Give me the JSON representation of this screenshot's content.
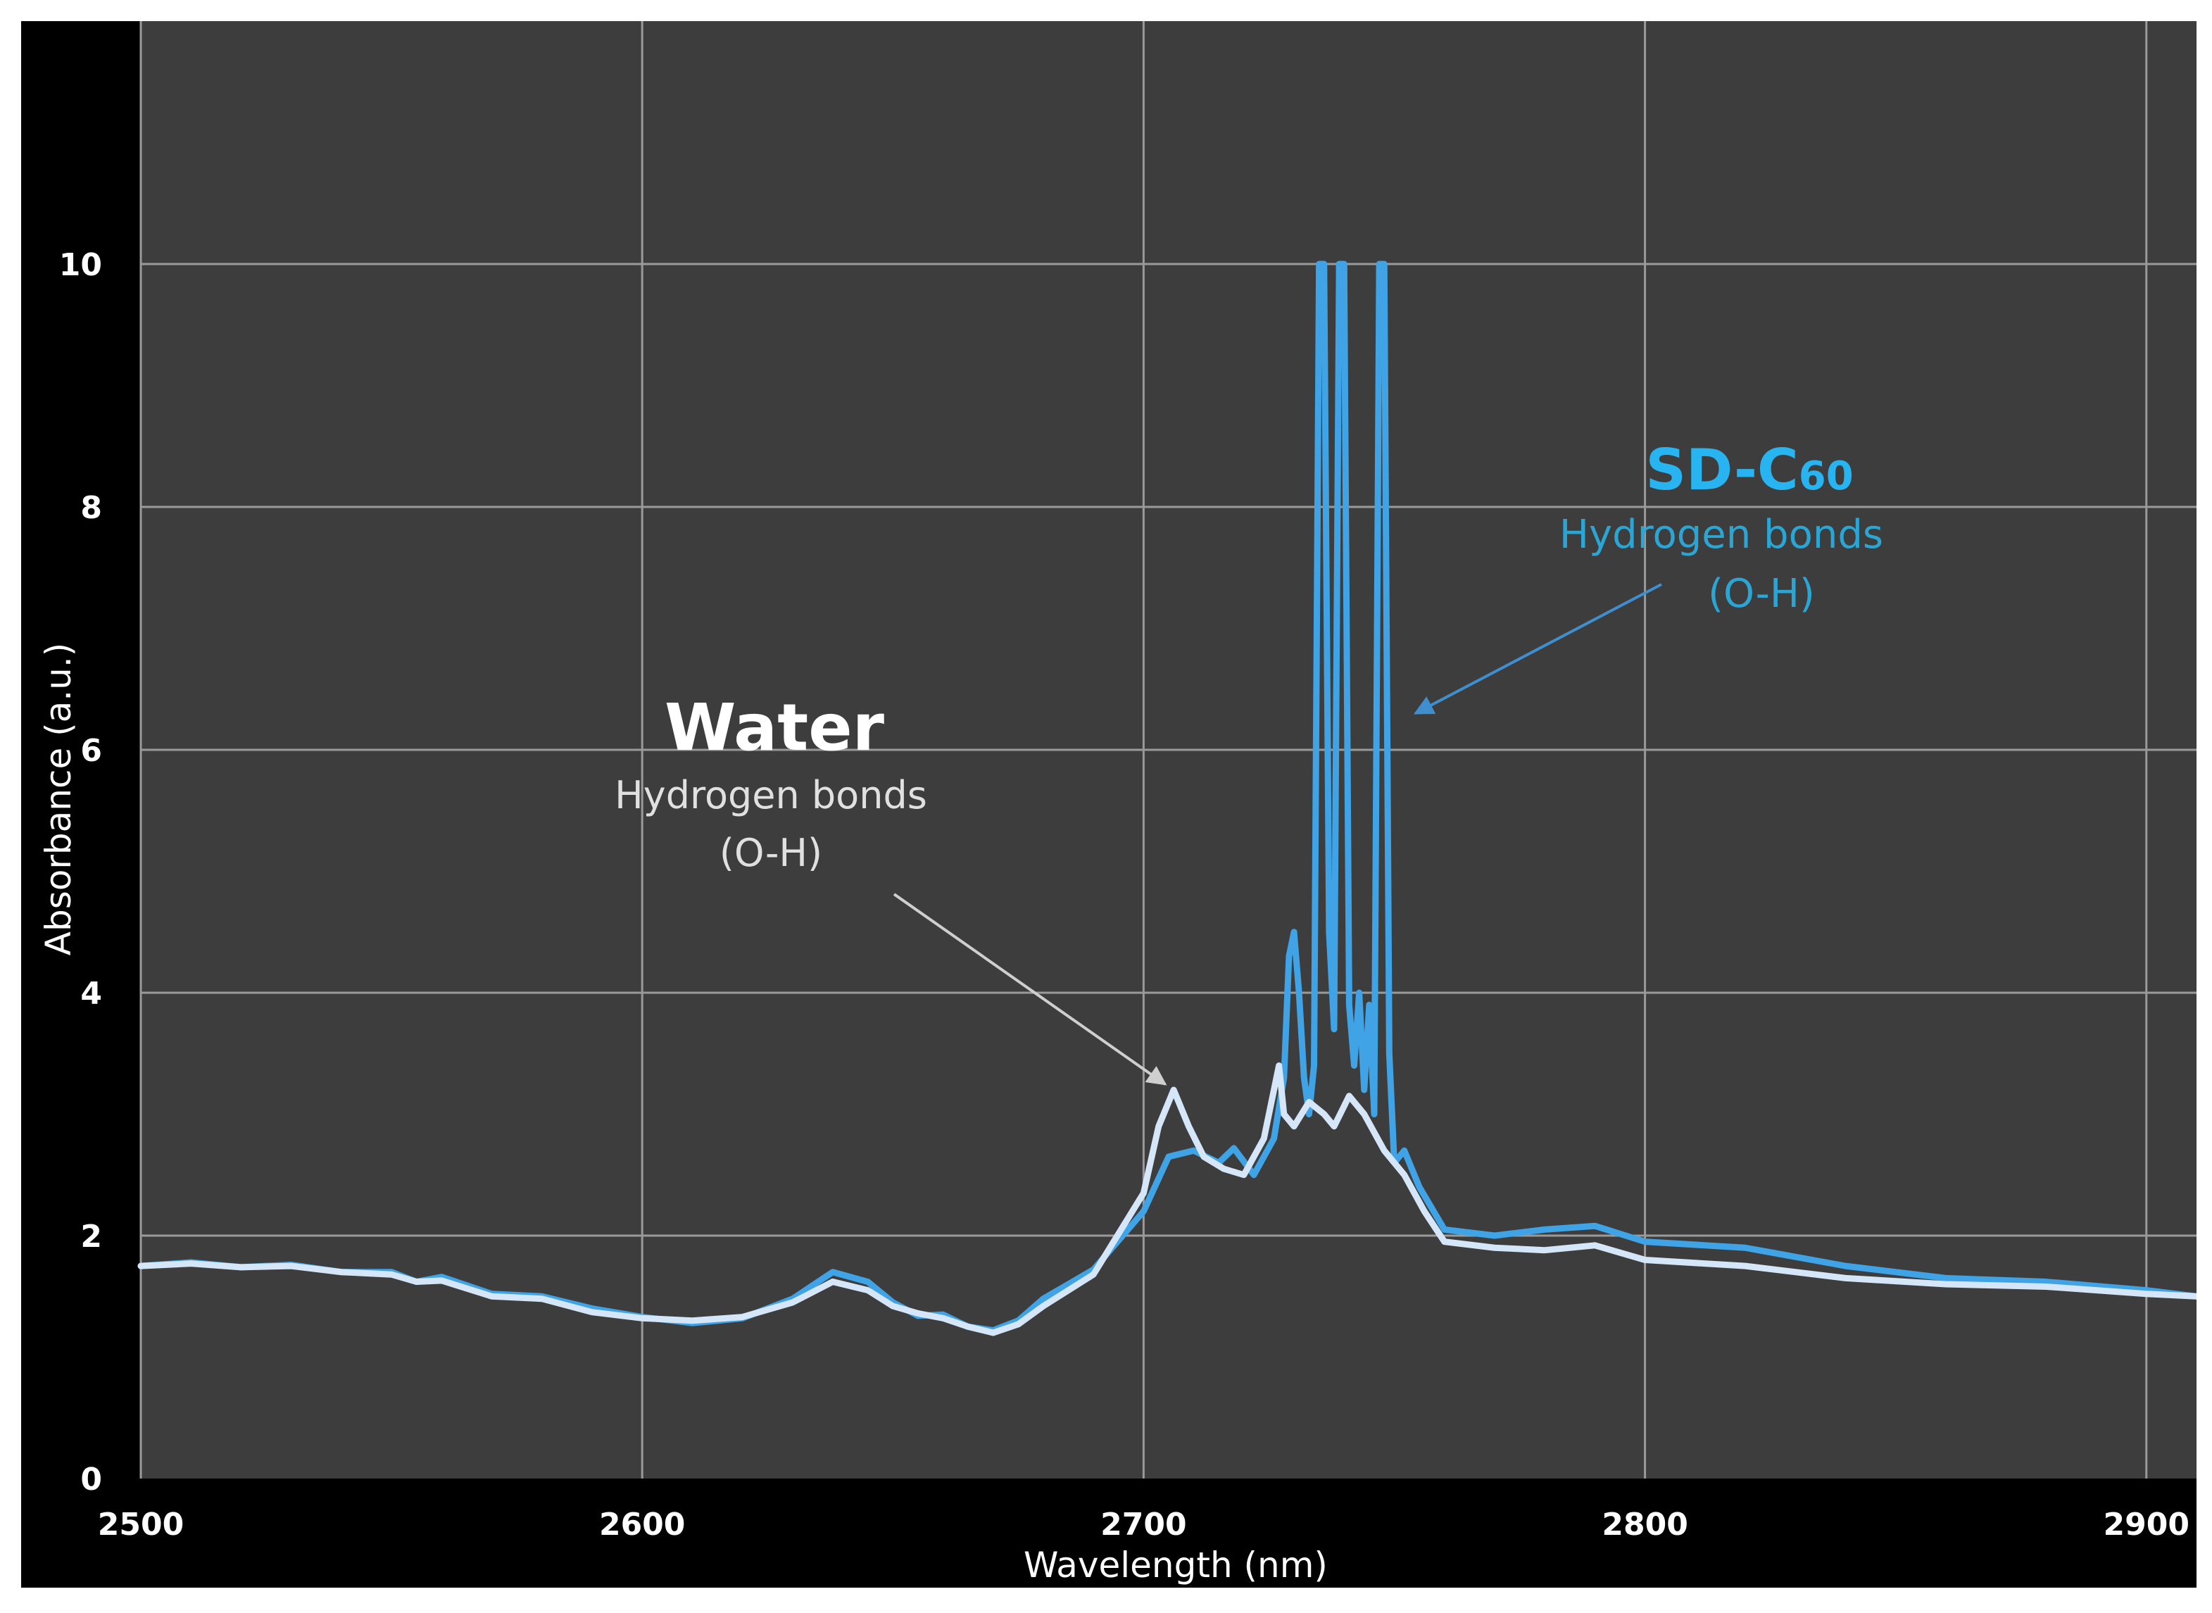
{
  "chart_data": {
    "type": "line",
    "title": "",
    "xlabel": "Wavelength (nm)",
    "ylabel": "Absorbance  (a.u.)",
    "xlim": [
      2500,
      2910
    ],
    "ylim": [
      0,
      12
    ],
    "grid": true,
    "x_ticks": [
      2500,
      2600,
      2700,
      2800,
      2900
    ],
    "x_tick_labels": [
      "2500",
      "2600",
      "2700",
      "2800",
      "2900"
    ],
    "y_ticks": [
      0,
      2,
      4,
      6,
      8,
      10
    ],
    "y_tick_labels": [
      "0",
      "2",
      "4",
      "6",
      "8",
      "10"
    ],
    "colors": {
      "background": "#3d3d3d",
      "grid": "#9a9a9a",
      "water": "#d4e6f7",
      "sdc60": "#3fa3e6",
      "sdc60_label": "#28b4f0",
      "sdc60_sub": "#2aa5d4",
      "arrow_water": "#cfcfcf",
      "arrow_sdc60": "#3f8fd0"
    },
    "series": [
      {
        "name": "SD-C60",
        "points": [
          [
            2500,
            1.75
          ],
          [
            2510,
            1.78
          ],
          [
            2520,
            1.74
          ],
          [
            2530,
            1.76
          ],
          [
            2540,
            1.7
          ],
          [
            2550,
            1.7
          ],
          [
            2555,
            1.62
          ],
          [
            2560,
            1.66
          ],
          [
            2570,
            1.52
          ],
          [
            2580,
            1.5
          ],
          [
            2590,
            1.4
          ],
          [
            2600,
            1.33
          ],
          [
            2610,
            1.28
          ],
          [
            2620,
            1.32
          ],
          [
            2630,
            1.48
          ],
          [
            2638,
            1.7
          ],
          [
            2645,
            1.62
          ],
          [
            2650,
            1.45
          ],
          [
            2655,
            1.34
          ],
          [
            2660,
            1.35
          ],
          [
            2665,
            1.25
          ],
          [
            2670,
            1.22
          ],
          [
            2675,
            1.3
          ],
          [
            2680,
            1.48
          ],
          [
            2690,
            1.72
          ],
          [
            2700,
            2.2
          ],
          [
            2705,
            2.65
          ],
          [
            2710,
            2.7
          ],
          [
            2715,
            2.6
          ],
          [
            2718,
            2.72
          ],
          [
            2722,
            2.5
          ],
          [
            2726,
            2.8
          ],
          [
            2728,
            3.3
          ],
          [
            2729,
            4.3
          ],
          [
            2730,
            4.5
          ],
          [
            2731,
            4.0
          ],
          [
            2732,
            3.3
          ],
          [
            2733,
            3.0
          ],
          [
            2734,
            3.4
          ],
          [
            2735,
            10.0
          ],
          [
            2736,
            10.0
          ],
          [
            2737,
            4.5
          ],
          [
            2738,
            3.7
          ],
          [
            2739,
            10.0
          ],
          [
            2740,
            10.0
          ],
          [
            2741,
            3.9
          ],
          [
            2742,
            3.4
          ],
          [
            2743,
            4.0
          ],
          [
            2744,
            3.2
          ],
          [
            2745,
            3.9
          ],
          [
            2746,
            3.0
          ],
          [
            2747,
            10.0
          ],
          [
            2748,
            10.0
          ],
          [
            2749,
            3.5
          ],
          [
            2750,
            2.6
          ],
          [
            2752,
            2.7
          ],
          [
            2755,
            2.4
          ],
          [
            2760,
            2.05
          ],
          [
            2770,
            2.0
          ],
          [
            2780,
            2.05
          ],
          [
            2790,
            2.08
          ],
          [
            2800,
            1.95
          ],
          [
            2820,
            1.9
          ],
          [
            2840,
            1.75
          ],
          [
            2860,
            1.65
          ],
          [
            2880,
            1.62
          ],
          [
            2900,
            1.55
          ],
          [
            2910,
            1.5
          ]
        ]
      },
      {
        "name": "Water",
        "points": [
          [
            2500,
            1.75
          ],
          [
            2510,
            1.77
          ],
          [
            2520,
            1.74
          ],
          [
            2530,
            1.75
          ],
          [
            2540,
            1.7
          ],
          [
            2550,
            1.68
          ],
          [
            2555,
            1.62
          ],
          [
            2560,
            1.63
          ],
          [
            2570,
            1.5
          ],
          [
            2580,
            1.48
          ],
          [
            2590,
            1.37
          ],
          [
            2600,
            1.32
          ],
          [
            2610,
            1.3
          ],
          [
            2620,
            1.33
          ],
          [
            2630,
            1.45
          ],
          [
            2638,
            1.62
          ],
          [
            2645,
            1.55
          ],
          [
            2650,
            1.42
          ],
          [
            2655,
            1.36
          ],
          [
            2660,
            1.32
          ],
          [
            2665,
            1.25
          ],
          [
            2670,
            1.2
          ],
          [
            2675,
            1.27
          ],
          [
            2680,
            1.42
          ],
          [
            2690,
            1.68
          ],
          [
            2700,
            2.35
          ],
          [
            2703,
            2.9
          ],
          [
            2706,
            3.2
          ],
          [
            2709,
            2.9
          ],
          [
            2712,
            2.65
          ],
          [
            2716,
            2.55
          ],
          [
            2720,
            2.5
          ],
          [
            2724,
            2.8
          ],
          [
            2727,
            3.4
          ],
          [
            2728,
            3.0
          ],
          [
            2730,
            2.9
          ],
          [
            2733,
            3.1
          ],
          [
            2736,
            3.0
          ],
          [
            2738,
            2.9
          ],
          [
            2741,
            3.15
          ],
          [
            2744,
            3.0
          ],
          [
            2748,
            2.7
          ],
          [
            2752,
            2.5
          ],
          [
            2756,
            2.2
          ],
          [
            2760,
            1.95
          ],
          [
            2770,
            1.9
          ],
          [
            2780,
            1.88
          ],
          [
            2790,
            1.92
          ],
          [
            2800,
            1.8
          ],
          [
            2820,
            1.75
          ],
          [
            2840,
            1.65
          ],
          [
            2860,
            1.6
          ],
          [
            2880,
            1.58
          ],
          [
            2900,
            1.52
          ],
          [
            2910,
            1.5
          ]
        ]
      }
    ],
    "annotations": {
      "water": {
        "title": "Water",
        "line1": "Hydrogen bonds",
        "line2": "(O-H)",
        "arrow_to": [
          2706,
          3.2
        ]
      },
      "sdc60": {
        "title": "SD-C",
        "title_sub": "60",
        "line1": "Hydrogen bonds",
        "line2": "(O-H)",
        "arrow_to": [
          2750,
          6.3
        ]
      }
    }
  }
}
